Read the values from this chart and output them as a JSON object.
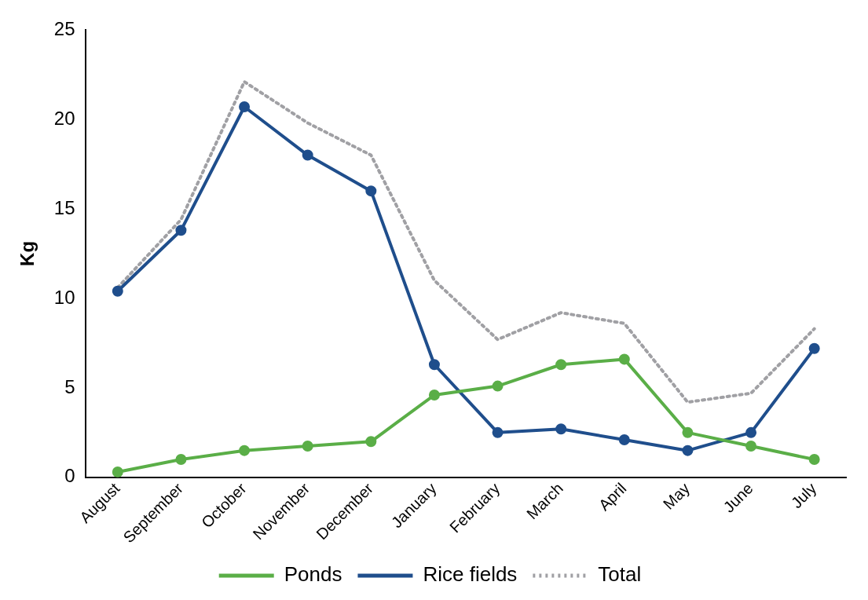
{
  "chart_data": {
    "type": "line",
    "ylabel": "Kg",
    "categories": [
      "August",
      "September",
      "October",
      "November",
      "December",
      "January",
      "February",
      "March",
      "April",
      "May",
      "June",
      "July"
    ],
    "series": [
      {
        "name": "Ponds",
        "color": "#5aae47",
        "marker": "circle",
        "line_style": "solid",
        "values": [
          0.3,
          1.0,
          1.5,
          1.75,
          2.0,
          4.6,
          5.1,
          6.3,
          6.6,
          2.5,
          1.75,
          1.0
        ]
      },
      {
        "name": "Rice fields",
        "color": "#1f4e8c",
        "marker": "circle",
        "line_style": "solid",
        "values": [
          10.4,
          13.8,
          20.7,
          18.0,
          16.0,
          6.3,
          2.5,
          2.7,
          2.1,
          1.5,
          2.5,
          7.2
        ]
      },
      {
        "name": "Total",
        "color": "#a0a0a4",
        "marker": "none",
        "line_style": "dotted",
        "values": [
          10.6,
          14.4,
          22.1,
          19.8,
          18.0,
          11.0,
          7.7,
          9.2,
          8.6,
          4.2,
          4.7,
          8.3
        ]
      }
    ],
    "ylim": [
      0,
      25
    ],
    "yticks": [
      0,
      5,
      10,
      15,
      20,
      25
    ],
    "grid": false,
    "legend": "bottom"
  }
}
